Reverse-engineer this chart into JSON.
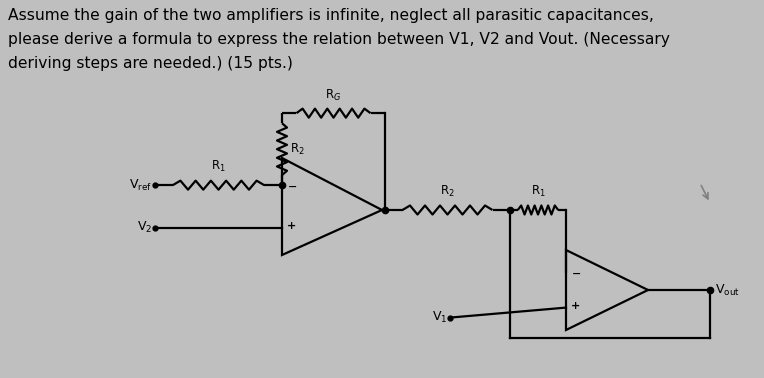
{
  "bg_color": "#c0bfbf",
  "text_color": "#000000",
  "line_color": "#000000",
  "title_lines": [
    "Assume the gain of the two amplifiers is infinite, neglect all parasitic capacitances,",
    "please derive a formula to express the relation between V1, V2 and Vout. (Necessary",
    "deriving steps are needed.) (15 pts.)"
  ],
  "title_fontsize": 11.2,
  "lw": 1.6
}
